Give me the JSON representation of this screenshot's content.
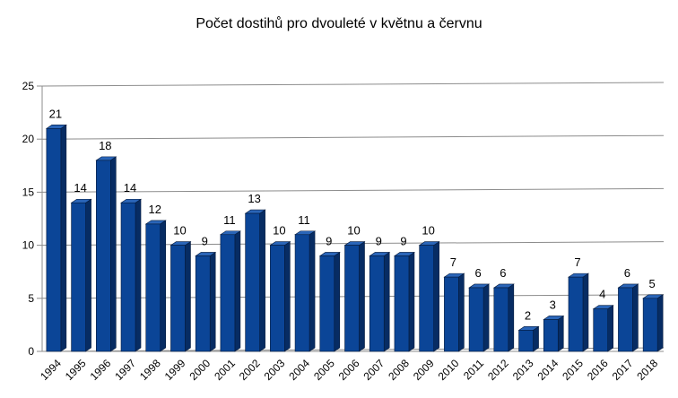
{
  "title": "Počet dostihů pro dvouleté v květnu a červnu",
  "chart_data": {
    "type": "bar",
    "title": "Počet dostihů pro dvouleté v květnu a červnu",
    "categories": [
      "1994",
      "1995",
      "1996",
      "1997",
      "1998",
      "1999",
      "2000",
      "2001",
      "2002",
      "2003",
      "2004",
      "2005",
      "2006",
      "2007",
      "2008",
      "2009",
      "2010",
      "2011",
      "2012",
      "2013",
      "2014",
      "2015",
      "2016",
      "2017",
      "2018"
    ],
    "values": [
      21,
      14,
      18,
      14,
      12,
      10,
      9,
      11,
      13,
      10,
      11,
      9,
      10,
      9,
      9,
      10,
      7,
      6,
      6,
      2,
      3,
      7,
      4,
      6,
      5
    ],
    "xlabel": "",
    "ylabel": "",
    "ylim": [
      0,
      25
    ],
    "yticks": [
      0,
      5,
      10,
      15,
      20,
      25
    ],
    "grid": true,
    "legend": "none",
    "bar_color": "#0b4597",
    "bar_side_color": "#072c63",
    "bar_top_color": "#2a65b8",
    "grid_color": "#8c8c8c"
  }
}
